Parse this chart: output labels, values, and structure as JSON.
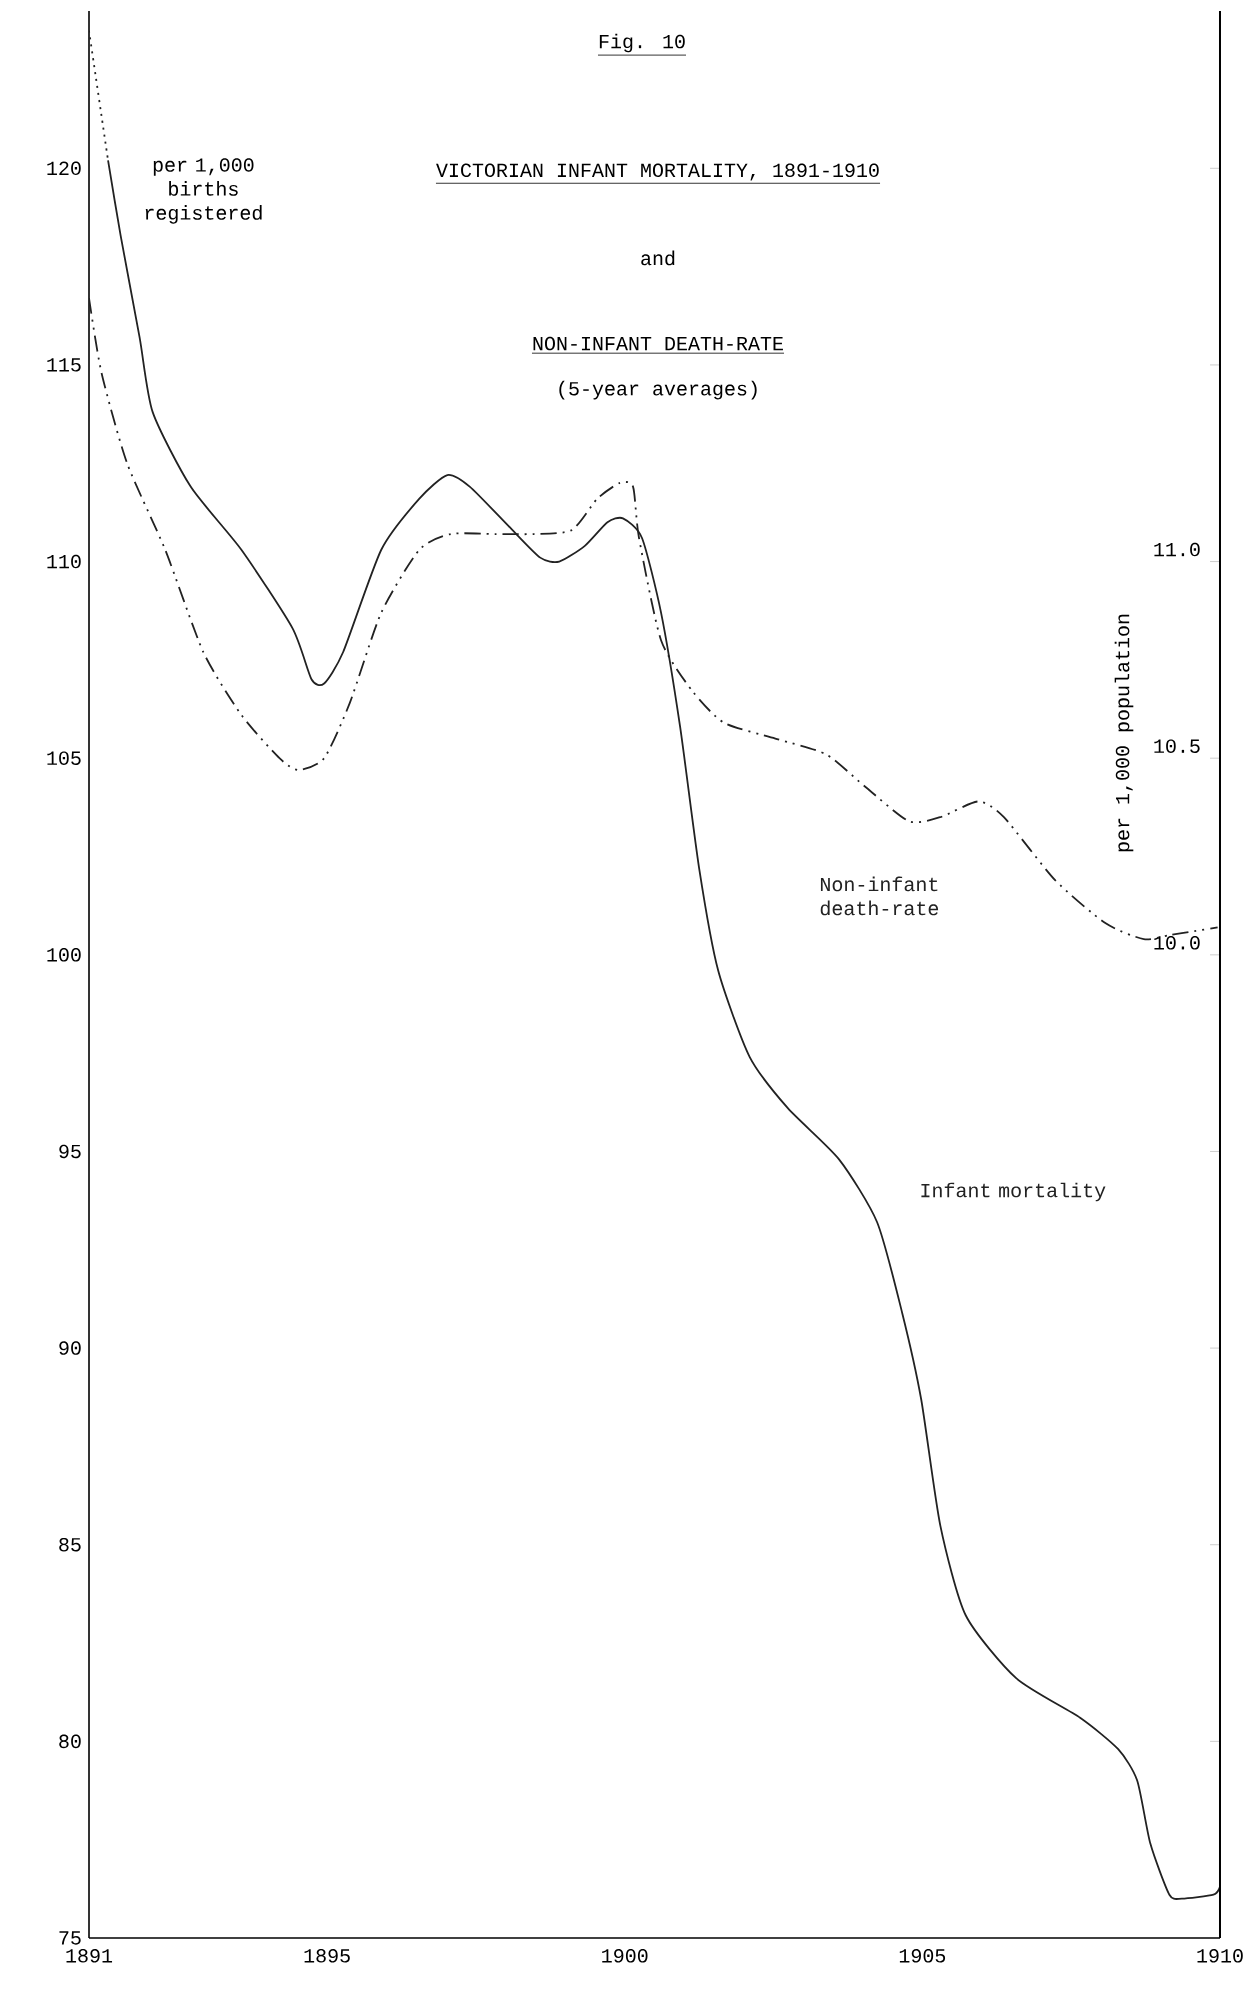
{
  "chart_data": {
    "type": "line",
    "title": "VICTORIAN INFANT MORTALITY, 1891-1910",
    "ylabel": "per 1,000 births registered",
    "y2label": "per 1,000 population",
    "annotations": [
      "Fig. 10",
      "and",
      "NON-INFANT DEATH-RATE",
      "(5-year averages)"
    ],
    "xlim": [
      1891,
      1910
    ],
    "xticks": [
      1891,
      1895,
      1900,
      1905,
      1910
    ],
    "ylim": [
      75,
      124
    ],
    "yticks": [
      75,
      80,
      85,
      90,
      95,
      100,
      105,
      110,
      115,
      120
    ],
    "y2lim": [
      7.5,
      12.4
    ],
    "y2ticks": [
      {
        "value": 8.0,
        "label": null
      },
      {
        "value": 8.5,
        "label": null
      },
      {
        "value": 9.0,
        "label": null
      },
      {
        "value": 9.5,
        "label": null
      },
      {
        "value": 10.0,
        "label": "10.0"
      },
      {
        "value": 10.5,
        "label": "10.5"
      },
      {
        "value": 11.0,
        "label": "11.0"
      },
      {
        "value": 11.5,
        "label": null
      },
      {
        "value": 12.0,
        "label": null
      }
    ],
    "grid": false,
    "marker": "none",
    "series": [
      {
        "name": "Infant mortality",
        "color": "#222222",
        "line_style": "solid",
        "x": [
          1891.32,
          1891.53,
          1891.85,
          1892.07,
          1892.71,
          1893.56,
          1894.42,
          1894.74,
          1894.95,
          1895.27,
          1895.91,
          1896.55,
          1897.02,
          1897.4,
          1898.05,
          1898.58,
          1898.9,
          1899.33,
          1899.71,
          1899.97,
          1900.29,
          1900.61,
          1900.93,
          1901.25,
          1901.57,
          1902.1,
          1902.74,
          1903.6,
          1904.24,
          1904.66,
          1904.98,
          1905.3,
          1905.73,
          1906.58,
          1907.65,
          1908.29,
          1908.61,
          1908.83,
          1909.15,
          1909.36,
          1909.89,
          1910.0
        ],
        "values": [
          120.2,
          118.3,
          115.7,
          113.8,
          111.9,
          110.3,
          108.3,
          107.0,
          106.9,
          107.7,
          110.3,
          111.6,
          112.2,
          111.9,
          110.9,
          110.1,
          110.0,
          110.4,
          111.0,
          111.1,
          110.6,
          108.7,
          105.8,
          102.2,
          99.6,
          97.4,
          96.1,
          94.8,
          93.2,
          90.9,
          88.7,
          85.5,
          83.2,
          81.6,
          80.6,
          79.8,
          79.0,
          77.4,
          76.1,
          76.0,
          76.1,
          76.3
        ]
      },
      {
        "color": "#222222",
        "line_style": "dotted",
        "x": [
          1891.0,
          1891.32
        ],
        "values": [
          123.5,
          120.2
        ]
      },
      {
        "name": "Non-infant death-rate",
        "color": "#222222",
        "line_style": "dashed",
        "axis": "y2",
        "x": [
          1891.0,
          1891.21,
          1891.64,
          1892.28,
          1892.92,
          1893.56,
          1894.2,
          1894.52,
          1894.95,
          1895.38,
          1895.91,
          1896.55,
          1897.08,
          1897.83,
          1898.47,
          1899.11,
          1899.54,
          1899.92,
          1900.14,
          1900.24,
          1900.61,
          1901.14,
          1901.67,
          1902.53,
          1903.38,
          1904.02,
          1904.77,
          1905.3,
          1905.94,
          1906.37,
          1907.23,
          1908.08,
          1908.72,
          1909.15,
          1909.57,
          1909.96
        ],
        "values": [
          11.67,
          11.48,
          11.25,
          11.03,
          10.77,
          10.61,
          10.5,
          10.47,
          10.5,
          10.64,
          10.87,
          11.03,
          11.07,
          11.07,
          11.07,
          11.08,
          11.16,
          11.2,
          11.19,
          11.06,
          10.8,
          10.67,
          10.59,
          10.55,
          10.51,
          10.43,
          10.34,
          10.35,
          10.39,
          10.35,
          10.19,
          10.08,
          10.04,
          10.05,
          10.06,
          10.07
        ]
      }
    ]
  }
}
